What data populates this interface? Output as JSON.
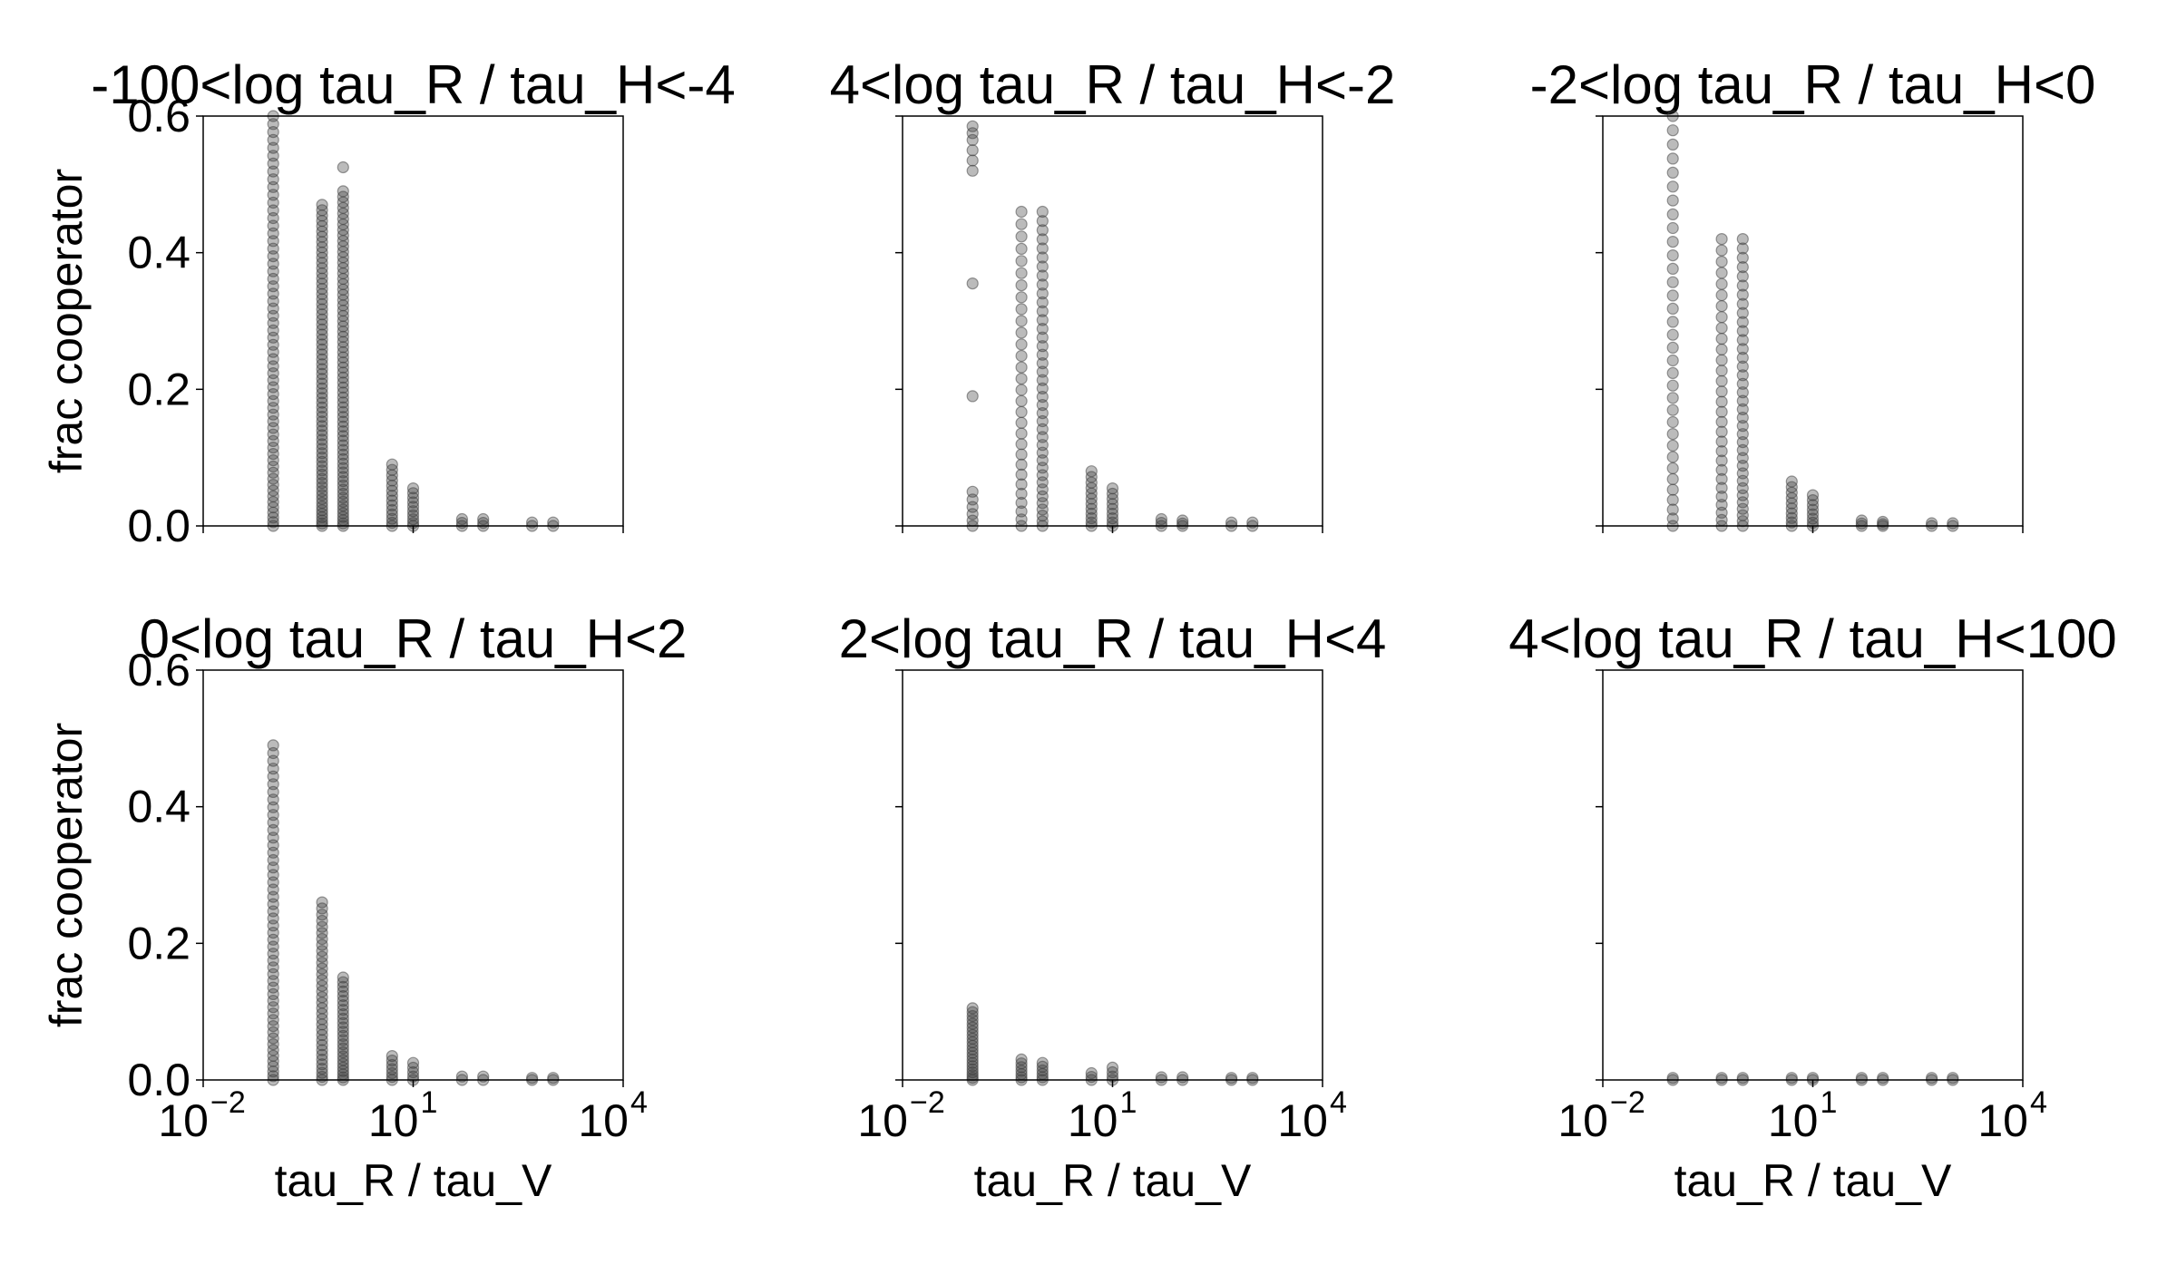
{
  "chart_data": {
    "type": "scatter",
    "layout": {
      "rows": 2,
      "cols": 3
    },
    "shared": {
      "xlabel": "tau_R / tau_V",
      "ylabel": "frac cooperator",
      "xscale": "log",
      "xlim_exp": [
        -2,
        4
      ],
      "x_ticks": [
        {
          "base": "10",
          "exp": "−2",
          "value": 0.01
        },
        {
          "base": "10",
          "exp": "1",
          "value": 10
        },
        {
          "base": "10",
          "exp": "4",
          "value": 10000
        }
      ],
      "ylim": [
        0,
        0.6
      ],
      "y_ticks": [
        "0.0",
        "0.2",
        "0.4",
        "0.6"
      ],
      "y_tick_values": [
        0,
        0.2,
        0.4,
        0.6
      ],
      "x_levels": [
        0.1,
        0.5,
        1,
        5,
        10,
        50,
        100,
        500,
        1000
      ]
    },
    "panels": [
      {
        "title": "-100<log tau_R / tau_H<-4",
        "show_ylabel": true,
        "show_xlabel": false,
        "series": [
          {
            "x": 0.1,
            "y_min": 0.0,
            "y_max": 0.6,
            "n": 60
          },
          {
            "x": 0.5,
            "y_min": 0.0,
            "y_max": 0.47,
            "n": 70
          },
          {
            "x": 1,
            "y_min": 0.0,
            "y_max": 0.49,
            "n": 70,
            "extra": [
              0.525
            ]
          },
          {
            "x": 5,
            "y_min": 0.0,
            "y_max": 0.09,
            "n": 14
          },
          {
            "x": 10,
            "y_min": 0.0,
            "y_max": 0.055,
            "n": 10
          },
          {
            "x": 50,
            "y_min": 0.0,
            "y_max": 0.01,
            "n": 3
          },
          {
            "x": 100,
            "y_min": 0.0,
            "y_max": 0.01,
            "n": 3
          },
          {
            "x": 500,
            "y_min": 0.0,
            "y_max": 0.005,
            "n": 2
          },
          {
            "x": 1000,
            "y_min": 0.0,
            "y_max": 0.005,
            "n": 2
          }
        ]
      },
      {
        "title": "4<log tau_R / tau_H<-2",
        "show_ylabel": false,
        "show_xlabel": false,
        "series": [
          {
            "x": 0.1,
            "y_min": 0.0,
            "y_max": 0.05,
            "n": 6,
            "extra": [
              0.19,
              0.355,
              0.52,
              0.535,
              0.55,
              0.565,
              0.575,
              0.585
            ]
          },
          {
            "x": 0.5,
            "y_min": 0.0,
            "y_max": 0.46,
            "n": 30
          },
          {
            "x": 1,
            "y_min": 0.0,
            "y_max": 0.46,
            "n": 40
          },
          {
            "x": 5,
            "y_min": 0.0,
            "y_max": 0.08,
            "n": 12
          },
          {
            "x": 10,
            "y_min": 0.0,
            "y_max": 0.055,
            "n": 9
          },
          {
            "x": 50,
            "y_min": 0.0,
            "y_max": 0.01,
            "n": 3
          },
          {
            "x": 100,
            "y_min": 0.0,
            "y_max": 0.008,
            "n": 3
          },
          {
            "x": 500,
            "y_min": 0.0,
            "y_max": 0.005,
            "n": 2
          },
          {
            "x": 1000,
            "y_min": 0.0,
            "y_max": 0.005,
            "n": 2
          }
        ]
      },
      {
        "title": "-2<log tau_R / tau_H<0",
        "show_ylabel": false,
        "show_xlabel": false,
        "series": [
          {
            "x": 0.1,
            "y_min": 0.0,
            "y_max": 0.6,
            "n": 34
          },
          {
            "x": 0.5,
            "y_min": 0.0,
            "y_max": 0.42,
            "n": 30
          },
          {
            "x": 1,
            "y_min": 0.0,
            "y_max": 0.42,
            "n": 36
          },
          {
            "x": 5,
            "y_min": 0.0,
            "y_max": 0.065,
            "n": 10
          },
          {
            "x": 10,
            "y_min": 0.0,
            "y_max": 0.045,
            "n": 8
          },
          {
            "x": 50,
            "y_min": 0.0,
            "y_max": 0.008,
            "n": 3
          },
          {
            "x": 100,
            "y_min": 0.0,
            "y_max": 0.006,
            "n": 3
          },
          {
            "x": 500,
            "y_min": 0.0,
            "y_max": 0.004,
            "n": 2
          },
          {
            "x": 1000,
            "y_min": 0.0,
            "y_max": 0.004,
            "n": 2
          }
        ]
      },
      {
        "title": "0<log tau_R / tau_H<2",
        "show_ylabel": true,
        "show_xlabel": true,
        "series": [
          {
            "x": 0.1,
            "y_min": 0.0,
            "y_max": 0.49,
            "n": 50
          },
          {
            "x": 0.5,
            "y_min": 0.0,
            "y_max": 0.26,
            "n": 34
          },
          {
            "x": 1,
            "y_min": 0.0,
            "y_max": 0.15,
            "n": 26
          },
          {
            "x": 5,
            "y_min": 0.0,
            "y_max": 0.035,
            "n": 7
          },
          {
            "x": 10,
            "y_min": 0.0,
            "y_max": 0.025,
            "n": 5
          },
          {
            "x": 50,
            "y_min": 0.0,
            "y_max": 0.005,
            "n": 2
          },
          {
            "x": 100,
            "y_min": 0.0,
            "y_max": 0.005,
            "n": 2
          },
          {
            "x": 500,
            "y_min": 0.0,
            "y_max": 0.003,
            "n": 2
          },
          {
            "x": 1000,
            "y_min": 0.0,
            "y_max": 0.003,
            "n": 2
          }
        ]
      },
      {
        "title": "2<log tau_R / tau_H<4",
        "show_ylabel": false,
        "show_xlabel": true,
        "series": [
          {
            "x": 0.1,
            "y_min": 0.0,
            "y_max": 0.105,
            "n": 22
          },
          {
            "x": 0.5,
            "y_min": 0.0,
            "y_max": 0.03,
            "n": 7
          },
          {
            "x": 1,
            "y_min": 0.0,
            "y_max": 0.025,
            "n": 6
          },
          {
            "x": 5,
            "y_min": 0.0,
            "y_max": 0.01,
            "n": 3
          },
          {
            "x": 10,
            "y_min": 0.0,
            "y_max": 0.018,
            "n": 4
          },
          {
            "x": 50,
            "y_min": 0.0,
            "y_max": 0.004,
            "n": 2
          },
          {
            "x": 100,
            "y_min": 0.0,
            "y_max": 0.004,
            "n": 2
          },
          {
            "x": 500,
            "y_min": 0.0,
            "y_max": 0.003,
            "n": 2
          },
          {
            "x": 1000,
            "y_min": 0.0,
            "y_max": 0.003,
            "n": 2
          }
        ]
      },
      {
        "title": "4<log tau_R / tau_H<100",
        "show_ylabel": false,
        "show_xlabel": true,
        "series": [
          {
            "x": 0.1,
            "y_min": 0.0,
            "y_max": 0.003,
            "n": 2
          },
          {
            "x": 0.5,
            "y_min": 0.0,
            "y_max": 0.003,
            "n": 2
          },
          {
            "x": 1,
            "y_min": 0.0,
            "y_max": 0.003,
            "n": 2
          },
          {
            "x": 5,
            "y_min": 0.0,
            "y_max": 0.003,
            "n": 2
          },
          {
            "x": 10,
            "y_min": 0.0,
            "y_max": 0.003,
            "n": 2
          },
          {
            "x": 50,
            "y_min": 0.0,
            "y_max": 0.003,
            "n": 2
          },
          {
            "x": 100,
            "y_min": 0.0,
            "y_max": 0.003,
            "n": 2
          },
          {
            "x": 500,
            "y_min": 0.0,
            "y_max": 0.003,
            "n": 2
          },
          {
            "x": 1000,
            "y_min": 0.0,
            "y_max": 0.003,
            "n": 2
          }
        ]
      }
    ]
  }
}
